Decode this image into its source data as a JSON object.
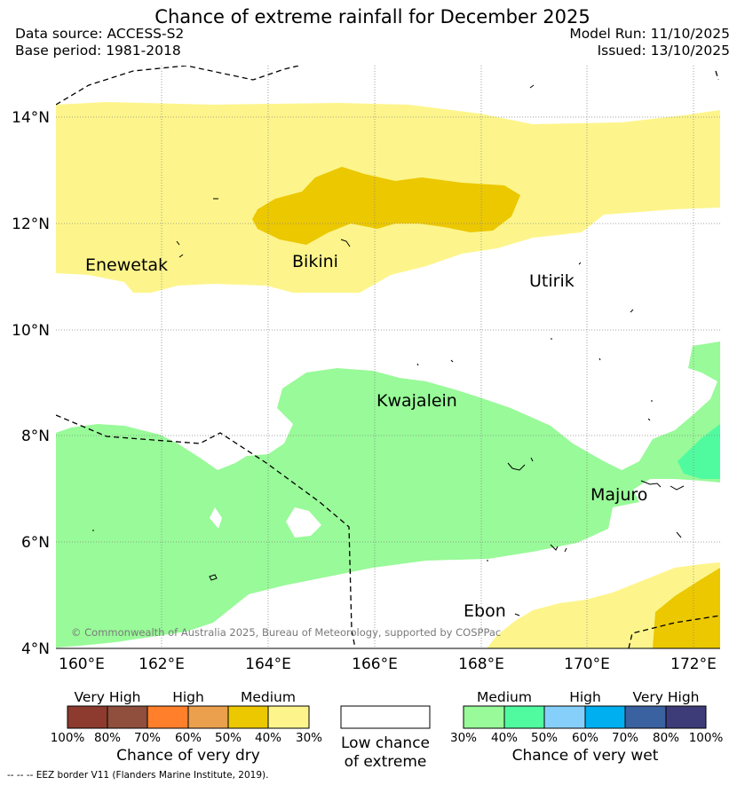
{
  "title": "Chance of extreme rainfall for December 2025",
  "meta": {
    "data_source": "Data source: ACCESS-S2",
    "base_period": "Base period: 1981-2018",
    "model_run": "Model Run: 11/10/2025",
    "issued": "Issued: 13/10/2025"
  },
  "map": {
    "lon_ticks": [
      "160°E",
      "162°E",
      "164°E",
      "166°E",
      "168°E",
      "170°E",
      "172°E"
    ],
    "lat_ticks": [
      "14°N",
      "12°N",
      "10°N",
      "8°N",
      "6°N",
      "4°N"
    ],
    "places": {
      "enewetak": "Enewetak",
      "bikini": "Bikini",
      "utirik": "Utirik",
      "kwajalein": "Kwajalein",
      "majuro": "Majuro",
      "ebon": "Ebon"
    },
    "copyright": "© Commonwealth of Australia 2025, Bureau of Meteorology, supported by COSPPac",
    "colors": {
      "dry_medium_light": "#fdf58b",
      "dry_medium_dark": "#ecc800",
      "wet_medium_light": "#98fa98",
      "wet_medium_dark": "#50fba0"
    }
  },
  "legend": {
    "dry": {
      "levels": [
        "Very High",
        "High",
        "Medium"
      ],
      "percents": [
        "100%",
        "80%",
        "70%",
        "60%",
        "50%",
        "40%",
        "30%"
      ],
      "caption": "Chance of very dry",
      "colors": [
        "#8c3b2e",
        "#8f4f3c",
        "#ff7f2b",
        "#eba04d",
        "#ecc800",
        "#fdf58b"
      ]
    },
    "neutral": {
      "caption_line1": "Low chance",
      "caption_line2": "of extreme",
      "color": "#ffffff"
    },
    "wet": {
      "levels": [
        "Medium",
        "High",
        "Very High"
      ],
      "percents": [
        "30%",
        "40%",
        "50%",
        "60%",
        "70%",
        "80%",
        "100%"
      ],
      "caption": "Chance of very wet",
      "colors": [
        "#98fa98",
        "#50fba0",
        "#87cffb",
        "#00aff0",
        "#3a61a0",
        "#3e3c78"
      ]
    }
  },
  "eez_note": "--  --  -- EEZ border V11 (Flanders Marine Institute, 2019)."
}
